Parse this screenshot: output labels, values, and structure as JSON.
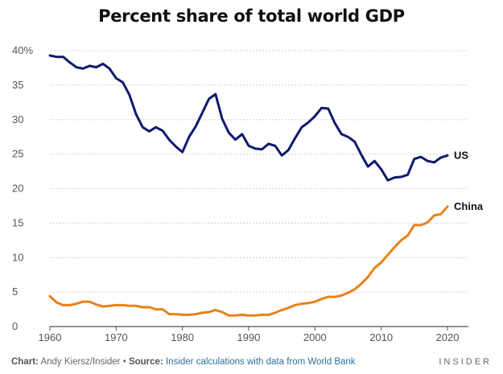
{
  "footer": {
    "chart_label": "Chart:",
    "author": "Andy Kiersz/Insider",
    "bullet": "•",
    "source_label": "Source:",
    "source_text": "Insider calculations with data from World Bank",
    "brand": "INSIDER"
  },
  "chart_data": {
    "type": "line",
    "title": "Percent share of total world GDP",
    "xlabel": "",
    "ylabel": "",
    "xlim": [
      1960,
      2020
    ],
    "ylim": [
      0,
      40
    ],
    "x_ticks": [
      1960,
      1970,
      1980,
      1990,
      2000,
      2010,
      2020
    ],
    "y_ticks": [
      0,
      5,
      10,
      15,
      20,
      25,
      30,
      35,
      40
    ],
    "y_tick_labels": [
      "0",
      "5",
      "10",
      "15",
      "20",
      "25",
      "30",
      "35",
      "40%"
    ],
    "grid": "horizontal",
    "legend": "labels at line ends",
    "x": [
      1960,
      1961,
      1962,
      1963,
      1964,
      1965,
      1966,
      1967,
      1968,
      1969,
      1970,
      1971,
      1972,
      1973,
      1974,
      1975,
      1976,
      1977,
      1978,
      1979,
      1980,
      1981,
      1982,
      1983,
      1984,
      1985,
      1986,
      1987,
      1988,
      1989,
      1990,
      1991,
      1992,
      1993,
      1994,
      1995,
      1996,
      1997,
      1998,
      1999,
      2000,
      2001,
      2002,
      2003,
      2004,
      2005,
      2006,
      2007,
      2008,
      2009,
      2010,
      2011,
      2012,
      2013,
      2014,
      2015,
      2016,
      2017,
      2018,
      2019,
      2020
    ],
    "series": [
      {
        "name": "US",
        "color": "#0f1a6b",
        "values": [
          39.3,
          39.1,
          39.1,
          38.3,
          37.6,
          37.4,
          37.8,
          37.6,
          38.1,
          37.4,
          36.0,
          35.4,
          33.6,
          30.8,
          28.9,
          28.3,
          28.9,
          28.4,
          27.1,
          26.1,
          25.3,
          27.5,
          29.0,
          31.0,
          33.0,
          33.7,
          30.1,
          28.1,
          27.1,
          27.9,
          26.2,
          25.8,
          25.7,
          26.5,
          26.2,
          24.8,
          25.6,
          27.3,
          28.9,
          29.6,
          30.5,
          31.7,
          31.6,
          29.5,
          27.9,
          27.5,
          26.8,
          24.9,
          23.2,
          24.0,
          22.8,
          21.2,
          21.6,
          21.7,
          22.0,
          24.3,
          24.6,
          24.0,
          23.8,
          24.5,
          24.8
        ]
      },
      {
        "name": "China",
        "color": "#e8821a",
        "values": [
          4.4,
          3.5,
          3.1,
          3.1,
          3.3,
          3.6,
          3.6,
          3.2,
          2.9,
          3.0,
          3.1,
          3.1,
          3.0,
          3.0,
          2.8,
          2.8,
          2.5,
          2.5,
          1.8,
          1.8,
          1.7,
          1.7,
          1.8,
          2.0,
          2.1,
          2.4,
          2.1,
          1.6,
          1.6,
          1.7,
          1.6,
          1.6,
          1.7,
          1.7,
          2.0,
          2.4,
          2.7,
          3.1,
          3.3,
          3.4,
          3.6,
          4.0,
          4.3,
          4.3,
          4.5,
          4.9,
          5.4,
          6.2,
          7.2,
          8.5,
          9.3,
          10.4,
          11.5,
          12.5,
          13.2,
          14.7,
          14.7,
          15.1,
          16.1,
          16.3,
          17.4
        ]
      }
    ]
  }
}
